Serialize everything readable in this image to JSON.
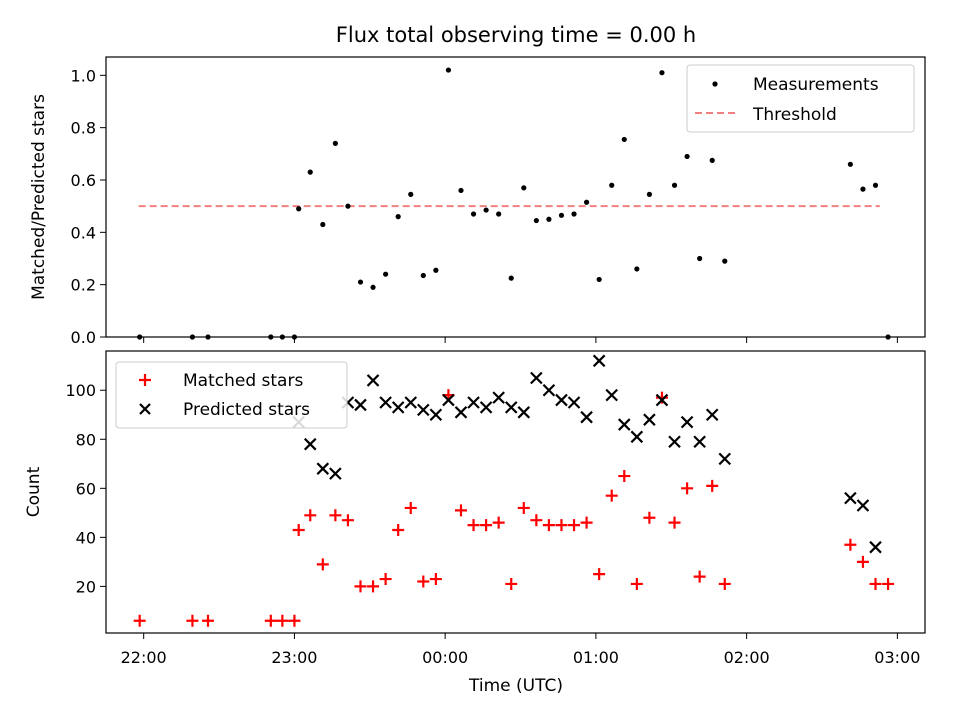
{
  "chart_data": {
    "type": "scatter",
    "title": "Flux total observing time = 0.00 h",
    "xlabel": "Time (UTC)",
    "x_ticks": [
      "22:00",
      "23:00",
      "00:00",
      "01:00",
      "02:00",
      "03:00"
    ],
    "x_tick_values_min": [
      0,
      60,
      120,
      180,
      240,
      300
    ],
    "xlim_min": [
      -15,
      311
    ],
    "top_panel": {
      "ylabel": "Matched/Predicted stars",
      "ylim": [
        0,
        1.07
      ],
      "y_ticks": [
        "0.0",
        "0.2",
        "0.4",
        "0.6",
        "0.8",
        "1.0"
      ],
      "y_tick_values": [
        0,
        0.2,
        0.4,
        0.6,
        0.8,
        1.0
      ],
      "legend": {
        "placement": "upper right",
        "entries": [
          "Measurements",
          "Threshold"
        ]
      },
      "threshold": {
        "name": "Threshold",
        "value": 0.5,
        "x_range_min": [
          -2,
          293
        ],
        "color": "#f08080",
        "style": "dashed"
      },
      "series": [
        {
          "name": "Measurements",
          "marker": "dot",
          "color": "#000000",
          "points_min": [
            [
              -1.6,
              0.0
            ],
            [
              19.4,
              0.0
            ],
            [
              25.6,
              0.0
            ],
            [
              50.6,
              0.0
            ],
            [
              55.2,
              0.0
            ],
            [
              60.0,
              0.0
            ],
            [
              61.7,
              0.49
            ],
            [
              66.3,
              0.63
            ],
            [
              71.3,
              0.43
            ],
            [
              76.3,
              0.74
            ],
            [
              81.3,
              0.5
            ],
            [
              86.3,
              0.21
            ],
            [
              91.3,
              0.19
            ],
            [
              96.3,
              0.24
            ],
            [
              101.3,
              0.46
            ],
            [
              106.3,
              0.545
            ],
            [
              111.3,
              0.235
            ],
            [
              116.3,
              0.255
            ],
            [
              121.3,
              1.02
            ],
            [
              126.3,
              0.56
            ],
            [
              131.3,
              0.47
            ],
            [
              136.3,
              0.485
            ],
            [
              141.3,
              0.47
            ],
            [
              146.3,
              0.225
            ],
            [
              151.3,
              0.57
            ],
            [
              156.3,
              0.445
            ],
            [
              161.3,
              0.45
            ],
            [
              166.3,
              0.465
            ],
            [
              171.3,
              0.47
            ],
            [
              176.3,
              0.515
            ],
            [
              181.3,
              0.22
            ],
            [
              186.3,
              0.58
            ],
            [
              191.3,
              0.755
            ],
            [
              196.3,
              0.26
            ],
            [
              201.3,
              0.545
            ],
            [
              206.3,
              1.01
            ],
            [
              211.3,
              0.58
            ],
            [
              216.3,
              0.69
            ],
            [
              221.3,
              0.3
            ],
            [
              226.3,
              0.675
            ],
            [
              231.3,
              0.29
            ],
            [
              281.3,
              0.66
            ],
            [
              286.3,
              0.565
            ],
            [
              291.3,
              0.58
            ],
            [
              296.3,
              0.0
            ]
          ]
        }
      ]
    },
    "bottom_panel": {
      "ylabel": "Count",
      "ylim": [
        1,
        116
      ],
      "y_ticks": [
        "20",
        "40",
        "60",
        "80",
        "100"
      ],
      "y_tick_values": [
        20,
        40,
        60,
        80,
        100
      ],
      "legend": {
        "placement": "upper left",
        "entries": [
          "Matched stars",
          "Predicted stars"
        ]
      },
      "series": [
        {
          "name": "Matched stars",
          "marker": "plus",
          "color": "#ff0000",
          "points_min": [
            [
              -1.6,
              6
            ],
            [
              19.4,
              6
            ],
            [
              25.6,
              6
            ],
            [
              50.6,
              6
            ],
            [
              55.2,
              6
            ],
            [
              60.0,
              6
            ],
            [
              61.7,
              43
            ],
            [
              66.3,
              49
            ],
            [
              71.3,
              29
            ],
            [
              76.3,
              49
            ],
            [
              81.3,
              47
            ],
            [
              86.3,
              20
            ],
            [
              91.3,
              20
            ],
            [
              96.3,
              23
            ],
            [
              101.3,
              43
            ],
            [
              106.3,
              52
            ],
            [
              111.3,
              22
            ],
            [
              116.3,
              23
            ],
            [
              121.3,
              98
            ],
            [
              126.3,
              51
            ],
            [
              131.3,
              45
            ],
            [
              136.3,
              45
            ],
            [
              141.3,
              46
            ],
            [
              146.3,
              21
            ],
            [
              151.3,
              52
            ],
            [
              156.3,
              47
            ],
            [
              161.3,
              45
            ],
            [
              166.3,
              45
            ],
            [
              171.3,
              45
            ],
            [
              176.3,
              46
            ],
            [
              181.3,
              25
            ],
            [
              186.3,
              57
            ],
            [
              191.3,
              65
            ],
            [
              196.3,
              21
            ],
            [
              201.3,
              48
            ],
            [
              206.3,
              97
            ],
            [
              211.3,
              46
            ],
            [
              216.3,
              60
            ],
            [
              221.3,
              24
            ],
            [
              226.3,
              61
            ],
            [
              231.3,
              21
            ],
            [
              281.3,
              37
            ],
            [
              286.3,
              30
            ],
            [
              291.3,
              21
            ],
            [
              296.3,
              21
            ]
          ]
        },
        {
          "name": "Predicted stars",
          "marker": "x",
          "color": "#000000",
          "points_min": [
            [
              61.7,
              87
            ],
            [
              66.3,
              78
            ],
            [
              71.3,
              68
            ],
            [
              76.3,
              66
            ],
            [
              81.3,
              95
            ],
            [
              86.3,
              94
            ],
            [
              91.3,
              104
            ],
            [
              96.3,
              95
            ],
            [
              101.3,
              93
            ],
            [
              106.3,
              95
            ],
            [
              111.3,
              92
            ],
            [
              116.3,
              90
            ],
            [
              121.3,
              96
            ],
            [
              126.3,
              91
            ],
            [
              131.3,
              95
            ],
            [
              136.3,
              93
            ],
            [
              141.3,
              97
            ],
            [
              146.3,
              93
            ],
            [
              151.3,
              91
            ],
            [
              156.3,
              105
            ],
            [
              161.3,
              100
            ],
            [
              166.3,
              96
            ],
            [
              171.3,
              95
            ],
            [
              176.3,
              89
            ],
            [
              181.3,
              112
            ],
            [
              186.3,
              98
            ],
            [
              191.3,
              86
            ],
            [
              196.3,
              81
            ],
            [
              201.3,
              88
            ],
            [
              206.3,
              96
            ],
            [
              211.3,
              79
            ],
            [
              216.3,
              87
            ],
            [
              221.3,
              79
            ],
            [
              226.3,
              90
            ],
            [
              231.3,
              72
            ],
            [
              281.3,
              56
            ],
            [
              286.3,
              53
            ],
            [
              291.3,
              36
            ]
          ]
        }
      ]
    }
  }
}
